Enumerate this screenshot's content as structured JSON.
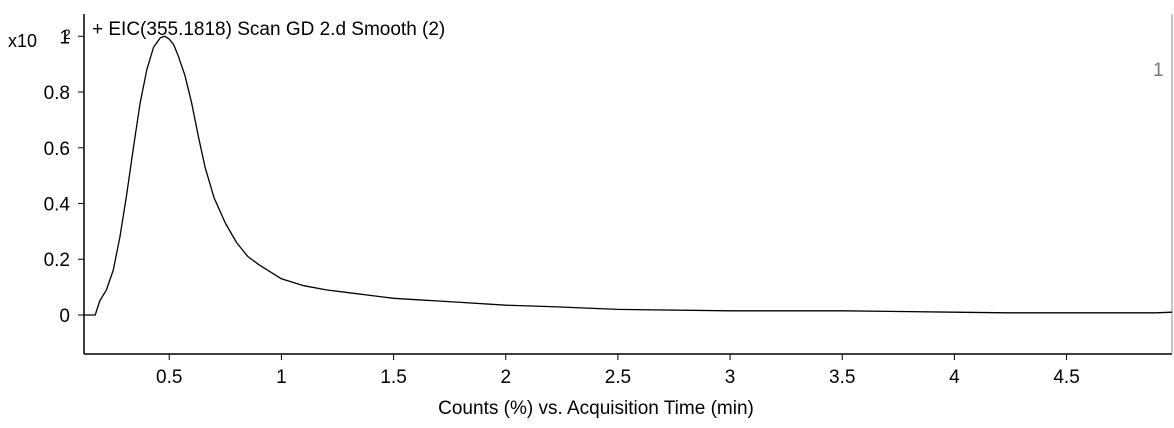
{
  "chart_data": {
    "type": "line",
    "title": "+ EIC(355.1818) Scan GD 2.d  Smooth (2)",
    "xlabel": "Counts (%) vs. Acquisition Time (min)",
    "ylabel": "",
    "y_scale_label": "x10",
    "y_scale_exponent": "2",
    "corner_label": "1",
    "xlim": [
      0.12,
      4.97
    ],
    "ylim": [
      -0.14,
      1.08
    ],
    "x_ticks": [
      0.5,
      1,
      1.5,
      2,
      2.5,
      3,
      3.5,
      4,
      4.5
    ],
    "x_tick_labels": [
      "0.5",
      "1",
      "1.5",
      "2",
      "2.5",
      "3",
      "3.5",
      "4",
      "4.5"
    ],
    "y_ticks": [
      0,
      0.2,
      0.4,
      0.6,
      0.8,
      1
    ],
    "y_tick_labels": [
      "0",
      "0.2",
      "0.4",
      "0.6",
      "0.8",
      "1"
    ],
    "grid": false,
    "line_color": "#000000",
    "series": [
      {
        "x": [
          0.12,
          0.17,
          0.19,
          0.22,
          0.25,
          0.28,
          0.31,
          0.34,
          0.37,
          0.4,
          0.43,
          0.46,
          0.48,
          0.5,
          0.52,
          0.54,
          0.57,
          0.6,
          0.63,
          0.66,
          0.7,
          0.75,
          0.8,
          0.85,
          0.9,
          0.95,
          1.0,
          1.1,
          1.2,
          1.3,
          1.4,
          1.5,
          1.6,
          1.7,
          1.8,
          2.0,
          2.2,
          2.5,
          3.0,
          3.5,
          4.0,
          4.23,
          4.5,
          4.9,
          4.97
        ],
        "y": [
          0.0,
          0.0,
          0.05,
          0.09,
          0.16,
          0.28,
          0.43,
          0.6,
          0.76,
          0.88,
          0.96,
          0.995,
          1.0,
          0.99,
          0.97,
          0.93,
          0.86,
          0.76,
          0.64,
          0.53,
          0.42,
          0.33,
          0.26,
          0.21,
          0.18,
          0.155,
          0.13,
          0.105,
          0.09,
          0.08,
          0.07,
          0.06,
          0.055,
          0.05,
          0.045,
          0.035,
          0.03,
          0.02,
          0.015,
          0.015,
          0.01,
          0.008,
          0.008,
          0.008,
          0.01
        ]
      }
    ]
  }
}
